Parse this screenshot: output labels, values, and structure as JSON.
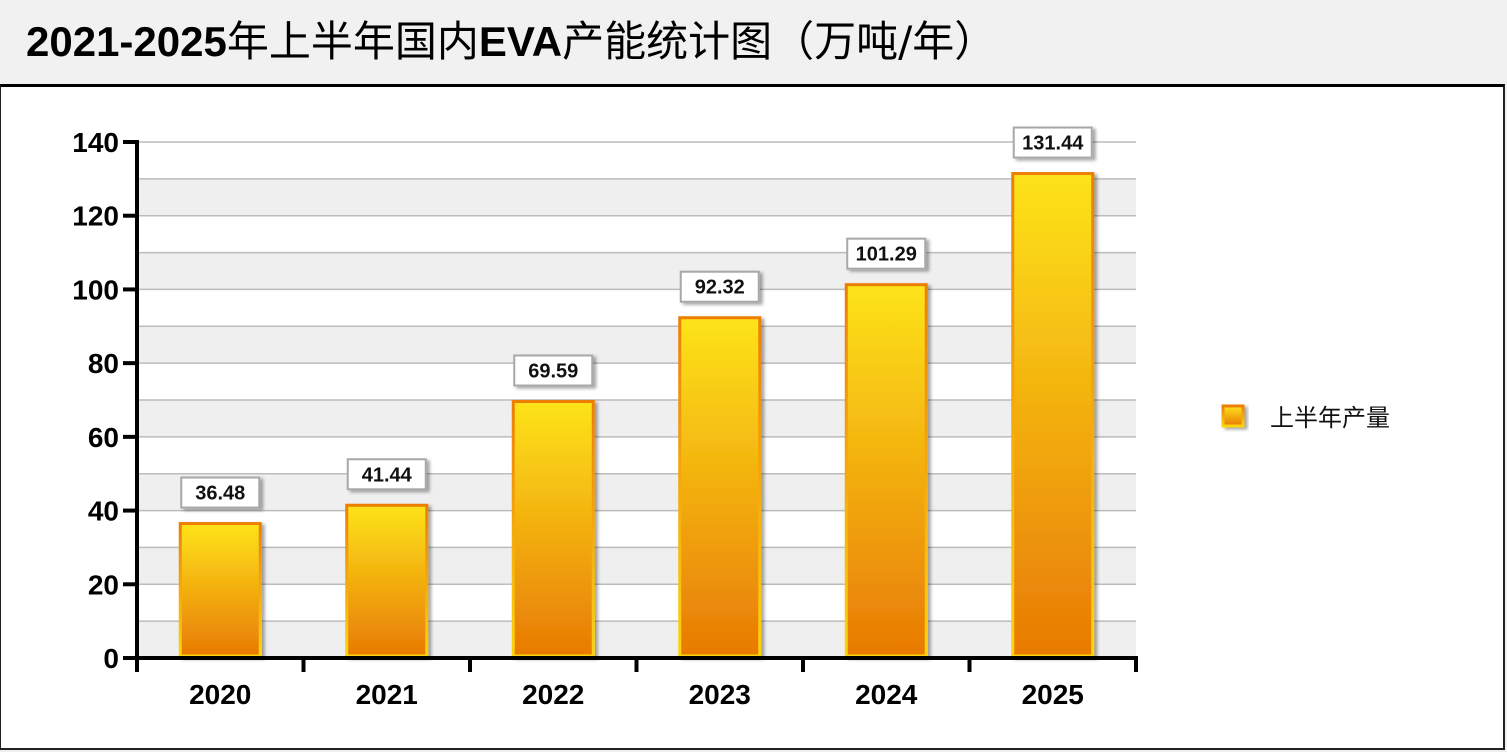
{
  "header": {
    "title_parts": [
      {
        "text": "2021-2025",
        "bold": true
      },
      {
        "text": "年上半年国内",
        "bold": false
      },
      {
        "text": "EVA",
        "bold": true
      },
      {
        "text": "产能统计图（万吨/年）",
        "bold": false
      }
    ]
  },
  "colors": {
    "bar_top": "#fde31a",
    "bar_bottom": "#e87a04",
    "bar_border_top": "#ec7e06",
    "bar_border_bottom": "#fcd40e",
    "grid_band": "#efefef",
    "grid_line": "#bcbcbc",
    "axis": "#000000"
  },
  "chart_data": {
    "type": "bar",
    "title": "2021-2025年上半年国内EVA产能统计图（万吨/年）",
    "xlabel": "",
    "ylabel": "",
    "categories": [
      "2020",
      "2021",
      "2022",
      "2023",
      "2024",
      "2025"
    ],
    "series": [
      {
        "name": "上半年产量",
        "values": [
          36.48,
          41.44,
          69.59,
          92.32,
          101.29,
          131.44
        ]
      }
    ],
    "data_labels": [
      "36.48",
      "41.44",
      "69.59",
      "92.32",
      "101.29",
      "131.44"
    ],
    "ylim": [
      0,
      140
    ],
    "yticks": [
      0,
      20,
      40,
      60,
      80,
      100,
      120,
      140
    ],
    "ytick_labels": [
      "0",
      "20",
      "40",
      "60",
      "80",
      "100",
      "120",
      "140"
    ],
    "minor_grid_step": 10,
    "grid": true,
    "alternating_bands": true,
    "legend": {
      "entries": [
        "上半年产量"
      ],
      "position": "right"
    }
  }
}
